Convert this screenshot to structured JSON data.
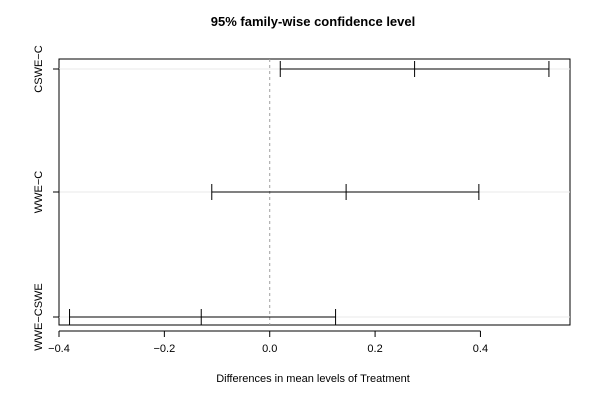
{
  "chart_data": {
    "type": "interval",
    "title": "95% family-wise confidence level",
    "xlabel": "Differences in mean levels of Treatment",
    "ylabel": "",
    "xlim": [
      -0.4,
      0.57
    ],
    "xticks": [
      -0.4,
      -0.2,
      0.0,
      0.2,
      0.4
    ],
    "xtick_labels": [
      "−0.4",
      "−0.2",
      "0.0",
      "0.2",
      "0.4"
    ],
    "reference_line": 0.0,
    "grid": false,
    "intervals": [
      {
        "label": "CSWE−C",
        "lower": 0.02,
        "estimate": 0.275,
        "upper": 0.53
      },
      {
        "label": "WWE−C",
        "lower": -0.11,
        "estimate": 0.145,
        "upper": 0.397
      },
      {
        "label": "WWE−CSWE",
        "lower": -0.38,
        "estimate": -0.13,
        "upper": 0.125
      }
    ]
  }
}
